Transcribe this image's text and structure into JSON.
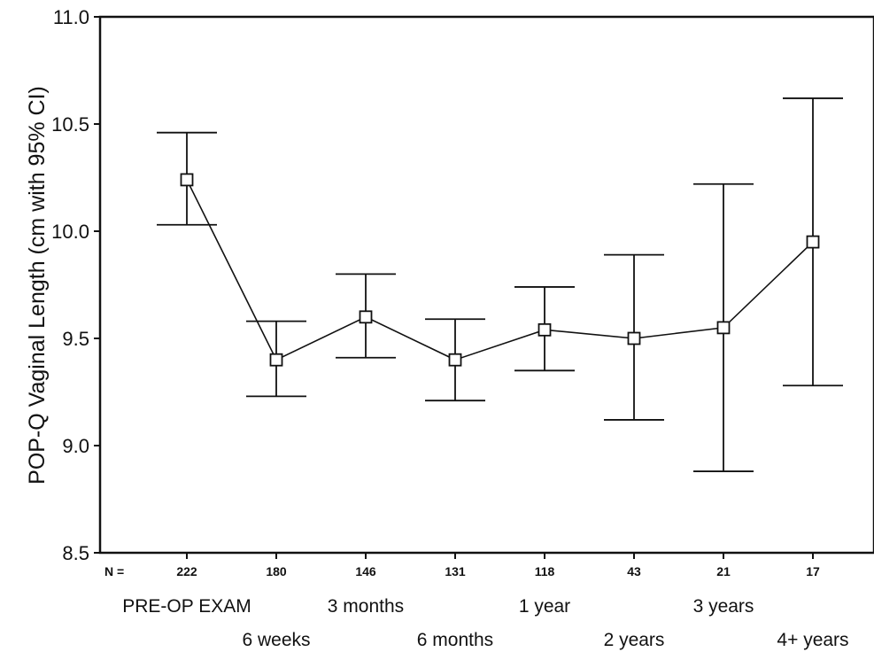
{
  "chart_data": {
    "type": "line",
    "title": "",
    "xlabel": "",
    "ylabel": "POP-Q Vaginal Length (cm with 95% CI)",
    "ylim": [
      8.5,
      11.0
    ],
    "yticks": [
      "8.5",
      "9.0",
      "9.5",
      "10.0",
      "10.5",
      "11.0"
    ],
    "n_prefix": "N =",
    "categories": [
      "PRE-OP EXAM",
      "6 weeks",
      "3 months",
      "6 months",
      "1 year",
      "2 years",
      "3 years",
      "4+ years"
    ],
    "n_values": [
      "222",
      "180",
      "146",
      "131",
      "118",
      "43",
      "21",
      "17"
    ],
    "series": [
      {
        "values": [
          10.24,
          9.4,
          9.6,
          9.4,
          9.54,
          9.5,
          9.55,
          9.95
        ],
        "ci_lower": [
          10.03,
          9.23,
          9.41,
          9.21,
          9.35,
          9.12,
          8.88,
          9.28
        ],
        "ci_upper": [
          10.46,
          9.58,
          9.8,
          9.59,
          9.74,
          9.89,
          10.22,
          10.62
        ]
      }
    ],
    "marker": "open-square",
    "grid": false,
    "legend": "none"
  }
}
